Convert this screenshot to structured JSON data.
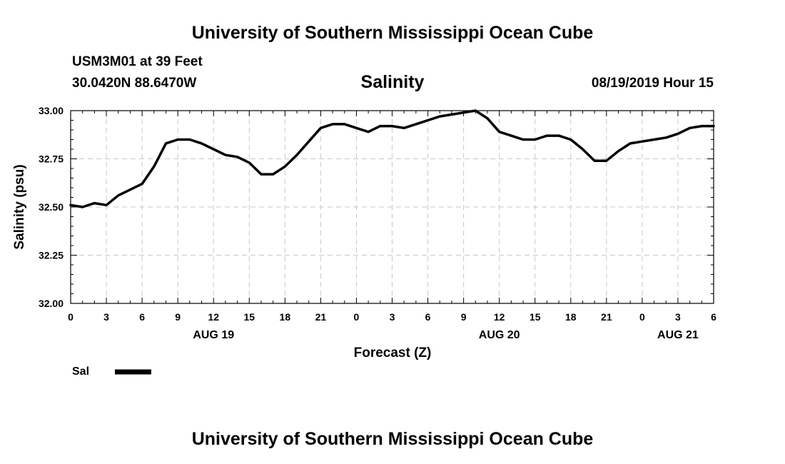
{
  "header": {
    "title_top": "University of Southern Mississippi Ocean Cube",
    "station": "USM3M01 at 39 Feet",
    "coords": "30.0420N 88.6470W",
    "datetime": "08/19/2019 Hour 15",
    "title_bottom": "University of Southern Mississippi Ocean Cube"
  },
  "chart_data": {
    "type": "line",
    "title": "Salinity",
    "xlabel": "Forecast (Z)",
    "ylabel": "Salinity (psu)",
    "ylim": [
      32.0,
      33.0
    ],
    "yticks": [
      "32.00",
      "32.25",
      "32.50",
      "32.75",
      "33.00"
    ],
    "xlim": [
      0,
      54
    ],
    "x_units": "hours since 00Z Aug 19",
    "xticks": [
      {
        "x": 0,
        "label": "0"
      },
      {
        "x": 3,
        "label": "3"
      },
      {
        "x": 6,
        "label": "6"
      },
      {
        "x": 9,
        "label": "9"
      },
      {
        "x": 12,
        "label": "12"
      },
      {
        "x": 15,
        "label": "15"
      },
      {
        "x": 18,
        "label": "18"
      },
      {
        "x": 21,
        "label": "21"
      },
      {
        "x": 24,
        "label": "0"
      },
      {
        "x": 27,
        "label": "3"
      },
      {
        "x": 30,
        "label": "6"
      },
      {
        "x": 33,
        "label": "9"
      },
      {
        "x": 36,
        "label": "12"
      },
      {
        "x": 39,
        "label": "15"
      },
      {
        "x": 42,
        "label": "18"
      },
      {
        "x": 45,
        "label": "21"
      },
      {
        "x": 48,
        "label": "0"
      },
      {
        "x": 51,
        "label": "3"
      },
      {
        "x": 54,
        "label": "6"
      }
    ],
    "date_labels": [
      {
        "x": 12,
        "label": "AUG 19"
      },
      {
        "x": 36,
        "label": "AUG 20"
      },
      {
        "x": 51,
        "label": "AUG 21"
      }
    ],
    "grid": true,
    "legend_position": "bottom-left",
    "series": [
      {
        "name": "Sal",
        "x": [
          0,
          1,
          2,
          3,
          4,
          5,
          6,
          7,
          8,
          9,
          10,
          11,
          12,
          13,
          14,
          15,
          16,
          17,
          18,
          19,
          20,
          21,
          22,
          23,
          24,
          25,
          26,
          27,
          28,
          29,
          30,
          31,
          32,
          33,
          34,
          35,
          36,
          37,
          38,
          39,
          40,
          41,
          42,
          43,
          44,
          45,
          46,
          47,
          48,
          49,
          50,
          51,
          52,
          53,
          54
        ],
        "values": [
          32.51,
          32.5,
          32.52,
          32.51,
          32.56,
          32.59,
          32.62,
          32.71,
          32.83,
          32.85,
          32.85,
          32.83,
          32.8,
          32.77,
          32.76,
          32.73,
          32.67,
          32.67,
          32.71,
          32.77,
          32.84,
          32.91,
          32.93,
          32.93,
          32.91,
          32.89,
          32.92,
          32.92,
          32.91,
          32.93,
          32.95,
          32.97,
          32.98,
          32.99,
          33.0,
          32.96,
          32.89,
          32.87,
          32.85,
          32.85,
          32.87,
          32.87,
          32.85,
          32.8,
          32.74,
          32.74,
          32.79,
          32.83,
          32.84,
          32.85,
          32.86,
          32.88,
          32.91,
          32.92,
          32.92
        ]
      }
    ]
  }
}
